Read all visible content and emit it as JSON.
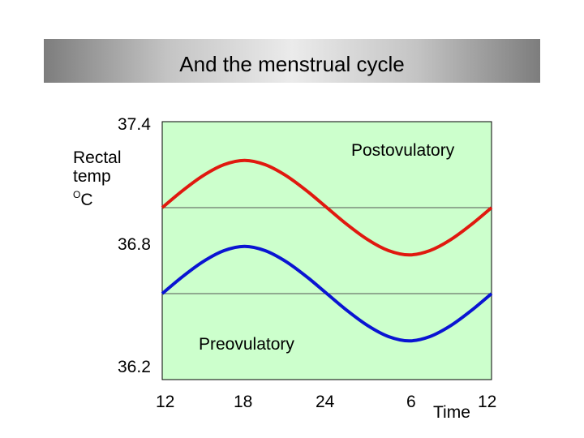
{
  "slide": {
    "title": "And the menstrual cycle"
  },
  "chart_data": {
    "type": "line",
    "ylabel": {
      "line1": "Rectal",
      "line2": "temp",
      "unit_sup": "O",
      "unit": "C"
    },
    "xlabel": "Time",
    "x_ticks": [
      "12",
      "18",
      "24",
      "6",
      "12"
    ],
    "x_tick_hours": [
      0,
      6,
      12,
      18,
      24
    ],
    "y_ticks": [
      "37.4",
      "36.8",
      "36.2"
    ],
    "y_tick_values": [
      37.4,
      36.8,
      36.2
    ],
    "ylim": [
      36.2,
      37.4
    ],
    "xlim": [
      0,
      24
    ],
    "gridlines_y": [
      37.0,
      36.6
    ],
    "background_color": "#ccffcc",
    "series": [
      {
        "name": "Postovulatory",
        "color": "#e0190f",
        "x": [
          0,
          1.5,
          3,
          4.5,
          6,
          7.5,
          9,
          10.5,
          12,
          13.5,
          15,
          16.5,
          18,
          19.5,
          21,
          22.5,
          24
        ],
        "values": [
          37.0,
          37.08,
          37.15,
          37.2,
          37.22,
          37.2,
          37.15,
          37.08,
          37.0,
          36.92,
          36.85,
          36.8,
          36.78,
          36.8,
          36.85,
          36.92,
          37.0
        ]
      },
      {
        "name": "Preovulatory",
        "color": "#0a14d2",
        "x": [
          0,
          1.5,
          3,
          4.5,
          6,
          7.5,
          9,
          10.5,
          12,
          13.5,
          15,
          16.5,
          18,
          19.5,
          21,
          22.5,
          24
        ],
        "values": [
          36.6,
          36.68,
          36.75,
          36.8,
          36.82,
          36.8,
          36.75,
          36.68,
          36.6,
          36.52,
          36.45,
          36.4,
          36.38,
          36.4,
          36.45,
          36.52,
          36.6
        ]
      }
    ]
  }
}
